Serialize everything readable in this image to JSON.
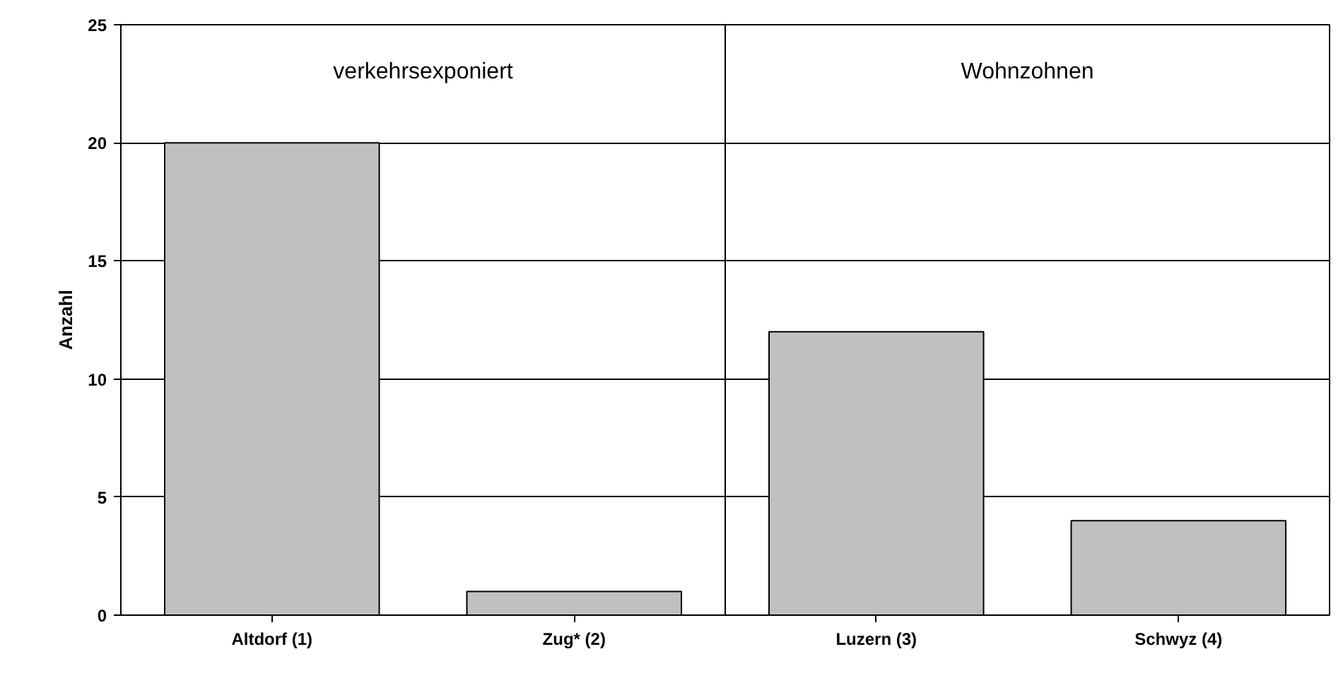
{
  "chart_data": {
    "type": "bar",
    "ylabel": "Anzahl",
    "categories": [
      "Altdorf (1)",
      "Zug* (2)",
      "Luzern (3)",
      "Schwyz (4)"
    ],
    "series": [
      {
        "color": "#c0c0c0",
        "values": [
          20,
          1,
          12,
          4
        ]
      }
    ],
    "ylim": [
      0,
      25
    ],
    "yticks": [
      0,
      5,
      10,
      15,
      20,
      25
    ],
    "grid": "y",
    "annotations": [
      "verkehrsexponiert",
      "Wohnzohnen"
    ]
  }
}
